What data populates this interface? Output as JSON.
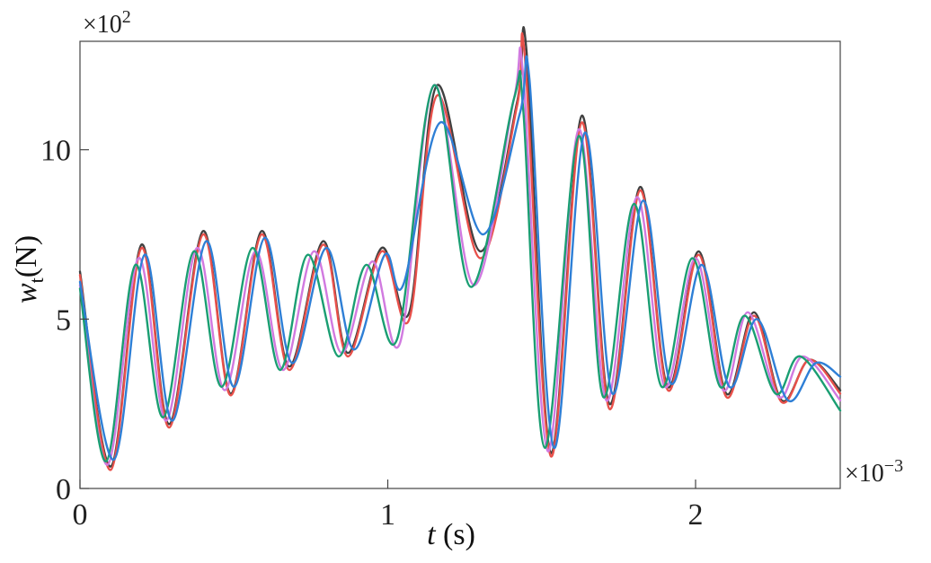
{
  "chart_data": {
    "type": "line",
    "xlabel": {
      "italic": "t",
      "rest": " (s)"
    },
    "ylabel": {
      "italic": "w",
      "sub": "t",
      "rest": "(N)"
    },
    "x_multiplier": {
      "base": "×10",
      "exp": "−3"
    },
    "y_multiplier": {
      "base": "×10",
      "exp": "2"
    },
    "xlim": [
      0,
      2.47
    ],
    "ylim": [
      0,
      13.2
    ],
    "x_ticks": [
      0,
      1,
      2
    ],
    "x_tick_labels": [
      "0",
      "1",
      "2"
    ],
    "y_ticks": [
      0,
      5,
      10
    ],
    "y_tick_labels": [
      "0",
      "5",
      "10"
    ],
    "grid": false,
    "series": [
      {
        "color": "#404040",
        "x": [
          0,
          0.1,
          0.2,
          0.29,
          0.4,
          0.49,
          0.59,
          0.68,
          0.79,
          0.87,
          0.98,
          1.07,
          1.16,
          1.3,
          1.42,
          1.45,
          1.53,
          1.63,
          1.72,
          1.82,
          1.91,
          2.01,
          2.1,
          2.19,
          2.28,
          2.37,
          2.47
        ],
        "y": [
          6.4,
          0.65,
          7.2,
          1.9,
          7.6,
          2.8,
          7.6,
          3.6,
          7.3,
          4.0,
          7.1,
          5.2,
          11.9,
          7.0,
          11.4,
          13.0,
          1.05,
          11.0,
          2.5,
          8.9,
          3.0,
          7.0,
          2.8,
          5.2,
          2.6,
          3.8,
          2.9
        ]
      },
      {
        "color": "#e8504a",
        "x": [
          0,
          0.1,
          0.2,
          0.29,
          0.4,
          0.49,
          0.59,
          0.68,
          0.79,
          0.87,
          0.98,
          1.07,
          1.16,
          1.3,
          1.42,
          1.445,
          1.53,
          1.63,
          1.72,
          1.82,
          1.91,
          2.01,
          2.1,
          2.19,
          2.28,
          2.37,
          2.47
        ],
        "y": [
          6.3,
          0.55,
          7.1,
          1.8,
          7.5,
          2.75,
          7.5,
          3.5,
          7.2,
          3.9,
          7.0,
          5.0,
          11.6,
          6.8,
          11.3,
          12.8,
          0.95,
          10.8,
          2.35,
          8.8,
          2.9,
          6.9,
          2.7,
          5.1,
          2.55,
          3.8,
          2.8
        ]
      },
      {
        "color": "#d17ae0",
        "x": [
          0,
          0.09,
          0.19,
          0.28,
          0.38,
          0.47,
          0.57,
          0.66,
          0.76,
          0.85,
          0.95,
          1.04,
          1.15,
          1.28,
          1.41,
          1.44,
          1.52,
          1.62,
          1.71,
          1.81,
          1.9,
          2.0,
          2.09,
          2.17,
          2.27,
          2.35,
          2.47
        ],
        "y": [
          6.0,
          0.7,
          6.8,
          2.0,
          7.1,
          2.9,
          7.0,
          3.5,
          7.0,
          4.0,
          6.7,
          4.3,
          11.9,
          6.0,
          11.5,
          12.2,
          1.1,
          10.6,
          2.6,
          8.6,
          3.0,
          6.8,
          2.9,
          5.2,
          2.7,
          3.9,
          2.6
        ]
      },
      {
        "color": "#1a9e72",
        "x": [
          0,
          0.085,
          0.18,
          0.27,
          0.37,
          0.46,
          0.56,
          0.65,
          0.74,
          0.84,
          0.93,
          1.03,
          1.15,
          1.27,
          1.41,
          1.44,
          1.51,
          1.62,
          1.7,
          1.8,
          1.89,
          1.99,
          2.08,
          2.16,
          2.26,
          2.34,
          2.47
        ],
        "y": [
          5.9,
          0.8,
          6.6,
          2.1,
          7.0,
          3.0,
          7.1,
          3.5,
          6.9,
          3.9,
          6.6,
          4.4,
          11.9,
          5.95,
          11.5,
          11.2,
          1.2,
          10.4,
          2.7,
          8.4,
          3.0,
          6.8,
          3.0,
          5.1,
          2.8,
          3.9,
          2.3
        ]
      },
      {
        "color": "#2e7fd6",
        "x": [
          0,
          0.11,
          0.21,
          0.3,
          0.41,
          0.5,
          0.6,
          0.69,
          0.8,
          0.89,
          0.99,
          1.05,
          1.17,
          1.31,
          1.43,
          1.46,
          1.54,
          1.64,
          1.73,
          1.83,
          1.92,
          2.02,
          2.11,
          2.2,
          2.3,
          2.39,
          2.47
        ],
        "y": [
          6.1,
          0.85,
          6.9,
          2.0,
          7.3,
          3.0,
          7.4,
          3.7,
          7.1,
          4.1,
          6.9,
          6.0,
          10.8,
          7.5,
          11.1,
          12.1,
          1.2,
          10.5,
          2.8,
          8.5,
          3.1,
          6.6,
          3.0,
          5.0,
          2.6,
          3.7,
          3.3
        ]
      }
    ]
  }
}
